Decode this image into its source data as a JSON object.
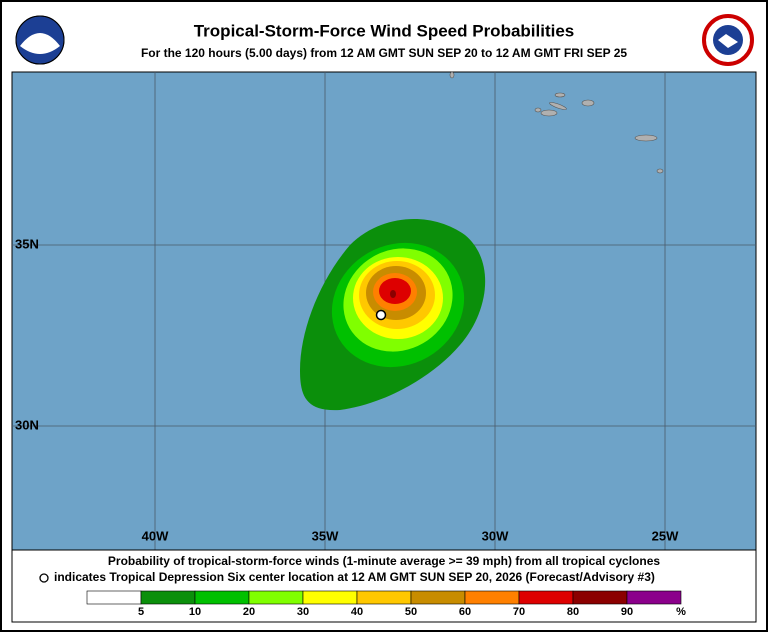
{
  "header": {
    "title": "Tropical-Storm-Force Wind Speed Probabilities",
    "subtitle": "For the 120 hours (5.00 days) from 12 AM GMT SUN SEP 20 to 12 AM GMT FRI SEP 25"
  },
  "map": {
    "lon_labels": [
      "40W",
      "35W",
      "30W",
      "25W"
    ],
    "lat_labels": [
      "35N",
      "30N"
    ]
  },
  "footer": {
    "caption": "Probability of tropical-storm-force winds (1-minute average >= 39 mph) from all tropical cyclones",
    "location_note": "indicates Tropical Depression Six center location at 12 AM GMT SUN SEP 20, 2026 (Forecast/Advisory #3)"
  },
  "legend": {
    "ticks": [
      "5",
      "10",
      "20",
      "30",
      "40",
      "50",
      "60",
      "70",
      "80",
      "90"
    ],
    "unit": "%"
  }
}
